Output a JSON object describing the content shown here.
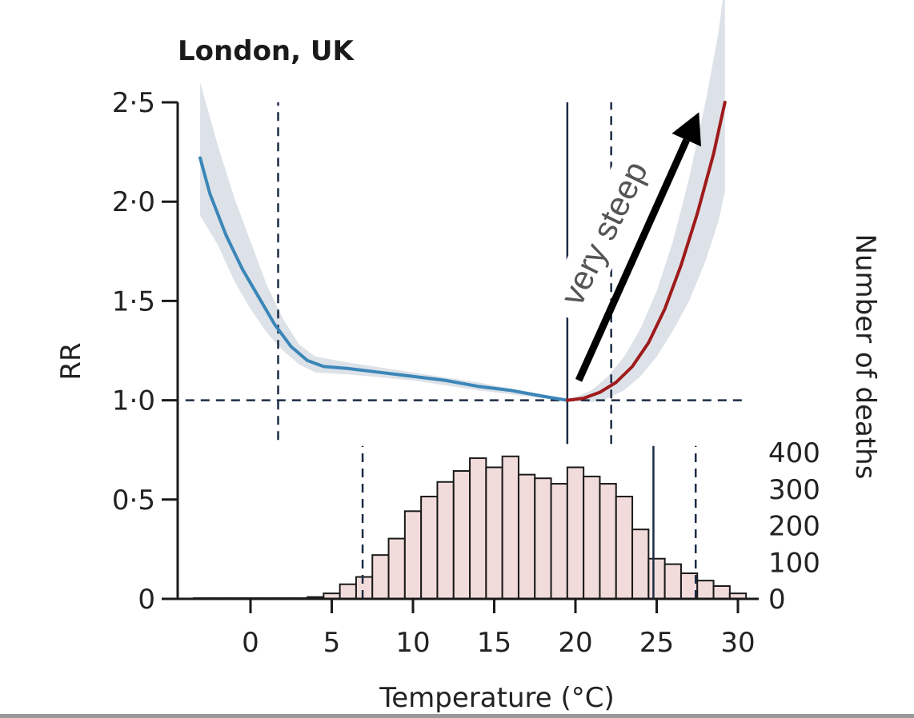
{
  "chart_data": {
    "type": "line",
    "title": "London, UK",
    "xlabel": "Temperature (°C)",
    "ylabel": "RR",
    "ylabel_right": "Number of deaths",
    "xlim": [
      -4,
      31
    ],
    "ylim": [
      0,
      2.5
    ],
    "x_ticks": [
      {
        "value": 0,
        "label": "0"
      },
      {
        "value": 5,
        "label": "5"
      },
      {
        "value": 10,
        "label": "10"
      },
      {
        "value": 15,
        "label": "15"
      },
      {
        "value": 20,
        "label": "20"
      },
      {
        "value": 25,
        "label": "25"
      },
      {
        "value": 30,
        "label": "30"
      }
    ],
    "y_ticks": [
      {
        "value": 0,
        "label": "0"
      },
      {
        "value": 0.5,
        "label": "0·5"
      },
      {
        "value": 1.0,
        "label": "1·0"
      },
      {
        "value": 1.5,
        "label": "1·5"
      },
      {
        "value": 2.0,
        "label": "2·0"
      },
      {
        "value": 2.5,
        "label": "2·5"
      }
    ],
    "y2_ticks": [
      {
        "value": 0,
        "label": "0"
      },
      {
        "value": 100,
        "label": "100"
      },
      {
        "value": 200,
        "label": "200"
      },
      {
        "value": 300,
        "label": "300"
      },
      {
        "value": 400,
        "label": "400"
      }
    ],
    "y2lim": [
      0,
      400
    ],
    "series": [
      {
        "color": "#3b86b8",
        "x": [
          -3.1,
          -2.5,
          -1.5,
          -0.5,
          0.5,
          1.5,
          2.5,
          3.5,
          4.5,
          6,
          8,
          10,
          12,
          14,
          16,
          18,
          19.5
        ],
        "y": [
          2.22,
          2.04,
          1.83,
          1.66,
          1.52,
          1.38,
          1.27,
          1.2,
          1.17,
          1.16,
          1.14,
          1.12,
          1.1,
          1.07,
          1.05,
          1.02,
          1.0
        ]
      },
      {
        "color": "#9e1b1b",
        "x": [
          19.5,
          20.5,
          21.5,
          22.5,
          23.5,
          24.5,
          25.5,
          26.5,
          27.5,
          28.5,
          29.2
        ],
        "y": [
          1.0,
          1.01,
          1.04,
          1.09,
          1.17,
          1.29,
          1.46,
          1.68,
          1.94,
          2.24,
          2.5
        ]
      }
    ],
    "ci_band": {
      "color": "#dde2e8",
      "x": [
        -3.1,
        -2,
        -1,
        0,
        1,
        2,
        3,
        4,
        6,
        10,
        14,
        18,
        19.5,
        21,
        22,
        23,
        24,
        25,
        26,
        27,
        28,
        28.8,
        29.2
      ],
      "upper": [
        2.6,
        2.28,
        2.02,
        1.8,
        1.58,
        1.41,
        1.28,
        1.22,
        1.19,
        1.14,
        1.09,
        1.03,
        1.0,
        1.05,
        1.12,
        1.22,
        1.36,
        1.55,
        1.8,
        2.12,
        2.5,
        2.85,
        3.1
      ],
      "lower": [
        1.93,
        1.78,
        1.6,
        1.46,
        1.34,
        1.25,
        1.18,
        1.14,
        1.13,
        1.1,
        1.05,
        1.01,
        1.0,
        0.99,
        1.01,
        1.05,
        1.12,
        1.22,
        1.35,
        1.5,
        1.7,
        1.9,
        2.05
      ]
    },
    "reference_lines": [
      {
        "orientation": "horizontal",
        "y": 1.0,
        "style": "dashed",
        "x_range": [
          -4,
          30.5
        ]
      },
      {
        "orientation": "vertical",
        "x": 1.7,
        "style": "dashed",
        "y_range": [
          0.8,
          2.5
        ]
      },
      {
        "orientation": "vertical",
        "x": 19.5,
        "style": "solid",
        "y_range": [
          0.78,
          2.5
        ]
      },
      {
        "orientation": "vertical",
        "x": 22.2,
        "style": "dashed",
        "y_range": [
          0.78,
          2.5
        ]
      },
      {
        "orientation": "vertical",
        "x": 6.9,
        "style": "dashed",
        "y_range": [
          0,
          0.77
        ]
      },
      {
        "orientation": "vertical",
        "x": 24.8,
        "style": "solid",
        "y_range": [
          0,
          0.77
        ]
      },
      {
        "orientation": "vertical",
        "x": 27.4,
        "style": "dashed",
        "y_range": [
          0,
          0.77
        ]
      }
    ],
    "histogram": {
      "color": "#f2dcdb",
      "bin_width": 1,
      "bin_start": -3.5,
      "counts": [
        2,
        2,
        2,
        2,
        2,
        2,
        2,
        5,
        15,
        40,
        60,
        120,
        165,
        240,
        280,
        320,
        350,
        385,
        360,
        390,
        340,
        330,
        315,
        360,
        335,
        315,
        280,
        190,
        110,
        95,
        70,
        50,
        35,
        15
      ]
    },
    "annotation": {
      "text": "very steep",
      "color": "#555555",
      "arrow_from": {
        "x": 20.2,
        "y": 1.1
      },
      "arrow_to": {
        "x": 27.6,
        "y": 2.45
      },
      "arrow_color": "#000000"
    },
    "grid": false
  }
}
